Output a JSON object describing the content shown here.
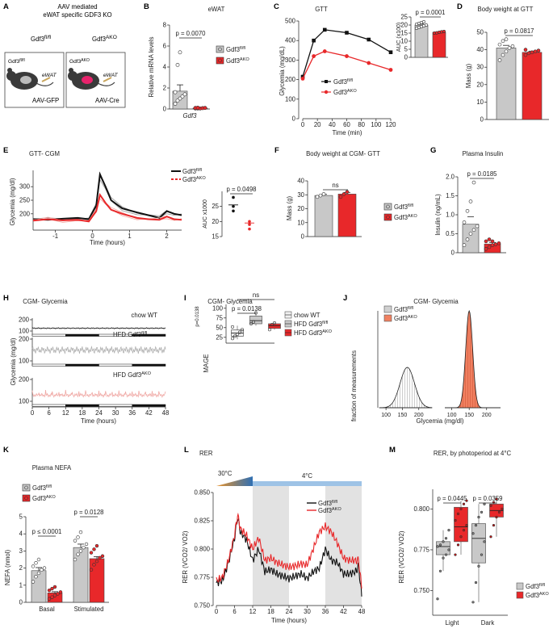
{
  "panel_A": {
    "letter": "A",
    "title_line1": "AAV mediated",
    "title_line2": "eWAT specific GDF3 KO",
    "mouse_left": "Gdf3",
    "mouse_left_sup": "fl/fl",
    "mouse_right": "Gdf3",
    "mouse_right_sup": "AKO",
    "ewat": "eWAT",
    "virus_left": "AAV-GFP",
    "virus_right": "AAV-Cre"
  },
  "colors": {
    "fl": "#c8c8c8",
    "ako": "#e8282a",
    "black": "#111111",
    "red": "#e8282a",
    "light_red": "#f4a6a0",
    "grey": "#9a9a9a",
    "blue": "#9ec3e6",
    "orange": "#e8922a"
  },
  "legend": {
    "fl": "Gdf3",
    "fl_sup": "fl/fl",
    "ako": "Gdf3",
    "ako_sup": "AKO",
    "chow": "chow WT",
    "hfd_fl": "HFD Gdf3",
    "hfd_ako": "HFD Gdf3"
  },
  "chart_data": [
    {
      "panel": "B",
      "type": "bar",
      "title": "eWAT",
      "ylabel": "Relative  mRNA levels",
      "xlabel": "Gdf3",
      "ylim": [
        0,
        8
      ],
      "yticks": [
        0,
        2,
        4,
        6,
        8
      ],
      "pvalue": "p = 0.0070",
      "series": [
        {
          "name": "Gdf3fl/fl",
          "value": 1.7,
          "sem": 0.6,
          "points": [
            0.5,
            0.8,
            1.0,
            1.2,
            1.4,
            1.6,
            4.2,
            5.4
          ]
        },
        {
          "name": "Gdf3AKO",
          "value": 0.08,
          "sem": 0.03,
          "points": [
            0.05,
            0.05,
            0.05,
            0.08,
            0.1,
            0.1,
            0.12
          ]
        }
      ]
    },
    {
      "panel": "C",
      "type": "line",
      "title": "GTT",
      "xlabel": "Time (min)",
      "ylabel": "Glycemia (mg/dL)",
      "x": [
        0,
        15,
        30,
        60,
        90,
        120
      ],
      "xticks": [
        0,
        20,
        40,
        60,
        80,
        100,
        120
      ],
      "ylim": [
        0,
        500
      ],
      "yticks": [
        0,
        100,
        200,
        300,
        400,
        500
      ],
      "series": [
        {
          "name": "Gdf3fl/fl",
          "values": [
            215,
            400,
            455,
            440,
            405,
            340
          ]
        },
        {
          "name": "Gdf3AKO",
          "values": [
            205,
            320,
            345,
            320,
            285,
            250
          ]
        }
      ],
      "inset": {
        "type": "bar",
        "ylabel": "AUC (x100)",
        "ylim": [
          0,
          25
        ],
        "yticks": [
          0,
          5,
          10,
          15,
          20,
          25
        ],
        "pvalue": "p = 0.0001",
        "values": [
          20,
          15.5
        ],
        "sems": [
          0.6,
          0.3
        ],
        "points": [
          [
            18,
            18.5,
            19,
            19.5,
            20,
            20.5,
            21,
            21.5,
            22
          ],
          [
            15,
            15.2,
            15.5,
            15.8,
            16
          ]
        ]
      }
    },
    {
      "panel": "D",
      "type": "bar",
      "title": "Body weight at GTT",
      "ylabel": "Mass (g)",
      "ylim": [
        0,
        50
      ],
      "yticks": [
        0,
        10,
        20,
        30,
        40,
        50
      ],
      "pvalue": "p = 0.0817",
      "series": [
        {
          "name": "Gdf3fl/fl",
          "value": 41,
          "sem": 1.5,
          "points": [
            34,
            37,
            39,
            41,
            42,
            43,
            45,
            46
          ]
        },
        {
          "name": "Gdf3AKO",
          "value": 38.5,
          "sem": 0.7,
          "points": [
            37,
            38,
            38.5,
            39,
            39.5,
            40
          ]
        }
      ]
    },
    {
      "panel": "E",
      "type": "line",
      "title": "GTT- CGM",
      "xlabel": "Time (hours)",
      "ylabel": "Glycemia (mg/dl)",
      "xlim": [
        -1.6,
        2.4
      ],
      "xticks": [
        -1,
        0,
        1,
        2
      ],
      "ylim": [
        140,
        360
      ],
      "yticks": [
        200,
        250,
        300
      ],
      "series": [
        {
          "name": "Gdf3fl/fl",
          "x": [
            -1.6,
            -1.2,
            -0.8,
            -0.4,
            -0.1,
            0.1,
            0.2,
            0.35,
            0.5,
            0.8,
            1.2,
            1.5,
            1.8,
            2.0,
            2.2,
            2.4
          ],
          "values": [
            180,
            178,
            182,
            185,
            180,
            230,
            345,
            300,
            250,
            220,
            205,
            195,
            185,
            210,
            200,
            195
          ]
        },
        {
          "name": "Gdf3AKO",
          "x": [
            -1.6,
            -1.2,
            -0.8,
            -0.4,
            -0.1,
            0.1,
            0.2,
            0.35,
            0.5,
            0.8,
            1.2,
            1.5,
            1.8,
            2.0,
            2.2,
            2.4
          ],
          "values": [
            175,
            180,
            176,
            178,
            172,
            210,
            270,
            240,
            215,
            200,
            185,
            180,
            178,
            190,
            180,
            178
          ]
        }
      ],
      "inset": {
        "type": "scatter",
        "ylabel": "AUC x1000",
        "ylim": [
          15,
          30
        ],
        "yticks": [
          15,
          20,
          25
        ],
        "pvalue": "p = 0.0498",
        "points": [
          [
            28,
            25,
            23.5
          ],
          [
            20,
            19,
            17.5
          ]
        ],
        "means": [
          25.5,
          19.5
        ]
      }
    },
    {
      "panel": "F",
      "type": "bar",
      "title": "Body weight at CGM- GTT",
      "ylabel": "Mass (g)",
      "ylim": [
        0,
        40
      ],
      "yticks": [
        0,
        10,
        20,
        30,
        40
      ],
      "pvalue": "ns",
      "series": [
        {
          "name": "Gdf3fl/fl",
          "value": 29.5,
          "sem": 0.8,
          "points": [
            28.5,
            29.5,
            30.5
          ]
        },
        {
          "name": "Gdf3AKO",
          "value": 30.5,
          "sem": 1.2,
          "points": [
            28.5,
            30.5,
            32
          ]
        }
      ]
    },
    {
      "panel": "G",
      "type": "bar",
      "title": "Plasma Insulin",
      "ylabel": "Insulin (ng/mL)",
      "ylim": [
        0,
        2.0
      ],
      "yticks": [
        0,
        0.5,
        1.0,
        1.5,
        2.0
      ],
      "pvalue": "p = 0.0185",
      "series": [
        {
          "name": "Gdf3fl/fl",
          "value": 0.75,
          "sem": 0.2,
          "points": [
            0.2,
            0.35,
            0.5,
            0.6,
            0.7,
            0.8,
            1.1,
            1.35,
            1.85
          ]
        },
        {
          "name": "Gdf3AKO",
          "value": 0.23,
          "sem": 0.04,
          "points": [
            0.1,
            0.15,
            0.2,
            0.22,
            0.25,
            0.3,
            0.35,
            0.3
          ]
        }
      ]
    },
    {
      "panel": "H",
      "type": "line",
      "title": "CGM- Glycemia",
      "xlabel": "Time (hours)",
      "ylabel": "Glycemia (mg/dl)",
      "xticks": [
        0,
        6,
        12,
        18,
        24,
        30,
        36,
        42,
        48
      ],
      "tracks": [
        {
          "name": "chow WT",
          "ylim": [
            100,
            200
          ],
          "yticks": [
            100,
            200
          ]
        },
        {
          "name": "HFD Gdf3fl/fl",
          "ylim": [
            100,
            200
          ],
          "yticks": [
            100,
            200
          ]
        },
        {
          "name": "HFD Gdf3AKO",
          "ylim": [
            100,
            200
          ],
          "yticks": [
            100,
            200
          ]
        }
      ]
    },
    {
      "panel": "I",
      "type": "box",
      "title": "CGM- Glycemia",
      "ylabel": "MAGE",
      "ylim": [
        10,
        110
      ],
      "yticks": [
        25,
        50,
        75,
        100
      ],
      "side_label": "p=0.0138",
      "comparisons": [
        {
          "label": "p = 0.0138"
        },
        {
          "label": "ns"
        }
      ],
      "groups": [
        {
          "name": "chow WT",
          "q1": 28,
          "median": 36,
          "q3": 44,
          "min": 20,
          "max": 55,
          "points": [
            22,
            28,
            33,
            38,
            45,
            52
          ]
        },
        {
          "name": "HFD Gdf3fl/fl",
          "q1": 60,
          "median": 68,
          "q3": 80,
          "min": 55,
          "max": 92,
          "points": [
            60,
            65,
            88
          ]
        },
        {
          "name": "HFD Gdf3AKO",
          "q1": 48,
          "median": 55,
          "q3": 60,
          "min": 45,
          "max": 63,
          "points": [
            45,
            58,
            62
          ]
        }
      ]
    },
    {
      "panel": "J",
      "type": "area",
      "title": "CGM- Glycemia",
      "xlabel": "Glycemia (mg/dl)",
      "ylabel": "fraction of measurements",
      "xticks": [
        100,
        150,
        200
      ],
      "series": [
        {
          "name": "Gdf3fl/fl",
          "center": 165,
          "spread": 22
        },
        {
          "name": "Gdf3AKO",
          "center": 150,
          "spread": 10
        }
      ]
    },
    {
      "panel": "K",
      "type": "bar",
      "title": "Plasma NEFA",
      "ylabel": "NEFA (nmol)",
      "categories": [
        "Basal",
        "Stimulated"
      ],
      "ylim": [
        0,
        5
      ],
      "yticks": [
        0,
        1,
        2,
        3,
        4,
        5
      ],
      "pvalues": [
        "p ≤ 0.0001",
        "p = 0.0128"
      ],
      "series": [
        {
          "name": "Gdf3fl/fl",
          "values": [
            1.85,
            3.2
          ],
          "sems": [
            0.18,
            0.2
          ],
          "points": [
            [
              1.2,
              1.5,
              1.7,
              1.9,
              2.0,
              2.1,
              2.3,
              2.5
            ],
            [
              2.5,
              2.8,
              3.0,
              3.2,
              3.4,
              3.6,
              3.8,
              4.1
            ]
          ]
        },
        {
          "name": "Gdf3AKO",
          "values": [
            0.55,
            2.55
          ],
          "sems": [
            0.07,
            0.12
          ],
          "points": [
            [
              0.2,
              0.3,
              0.4,
              0.5,
              0.6,
              0.7,
              0.8,
              0.9
            ],
            [
              1.9,
              2.2,
              2.4,
              2.6,
              2.7,
              2.9,
              3.1,
              3.3
            ]
          ]
        }
      ]
    },
    {
      "panel": "L",
      "type": "line",
      "title": "RER",
      "xlabel": "Time (hours)",
      "ylabel": "RER (VCO2/ VO2)",
      "xlim": [
        0,
        48
      ],
      "xticks": [
        0,
        6,
        12,
        18,
        24,
        30,
        36,
        42,
        48
      ],
      "ylim": [
        0.75,
        0.85
      ],
      "yticks": [
        0.75,
        0.775,
        0.8,
        0.825,
        0.85
      ],
      "temp_warm": "30°C",
      "temp_cold": "4°C",
      "series": [
        {
          "name": "Gdf3fl/fl",
          "x": [
            0,
            2,
            4,
            6,
            7,
            8,
            10,
            12,
            14,
            16,
            18,
            20,
            22,
            24,
            26,
            28,
            30,
            32,
            34,
            36,
            38,
            40,
            42,
            44,
            46,
            47,
            48
          ],
          "values": [
            0.77,
            0.772,
            0.788,
            0.81,
            0.828,
            0.815,
            0.808,
            0.79,
            0.8,
            0.78,
            0.782,
            0.778,
            0.776,
            0.774,
            0.776,
            0.778,
            0.774,
            0.78,
            0.783,
            0.8,
            0.79,
            0.788,
            0.778,
            0.778,
            0.78,
            0.785,
            0.758
          ]
        },
        {
          "name": "Gdf3AKO",
          "x": [
            0,
            2,
            4,
            6,
            7,
            8,
            10,
            12,
            14,
            16,
            18,
            20,
            22,
            24,
            26,
            28,
            30,
            32,
            34,
            36,
            38,
            40,
            42,
            44,
            46,
            47,
            48
          ],
          "values": [
            0.772,
            0.775,
            0.79,
            0.812,
            0.83,
            0.818,
            0.812,
            0.8,
            0.81,
            0.79,
            0.792,
            0.788,
            0.786,
            0.784,
            0.785,
            0.787,
            0.786,
            0.8,
            0.815,
            0.82,
            0.815,
            0.805,
            0.792,
            0.79,
            0.79,
            0.79,
            0.765
          ]
        }
      ]
    },
    {
      "panel": "M",
      "type": "box",
      "title": "RER, by photoperiod at 4°C",
      "ylabel": "RER (VCO2/ VO2)",
      "categories": [
        "Light",
        "Dark"
      ],
      "ylim": [
        0.735,
        0.812
      ],
      "yticks": [
        0.75,
        0.775,
        0.8
      ],
      "pvalues": [
        "p = 0.0445",
        "p = 0.0359"
      ],
      "groups": [
        {
          "cat": "Light",
          "name": "Gdf3fl/fl",
          "q1": 0.772,
          "median": 0.777,
          "q3": 0.78,
          "min": 0.762,
          "max": 0.787,
          "points": [
            0.745,
            0.762,
            0.77,
            0.772,
            0.775,
            0.777,
            0.778,
            0.78,
            0.782,
            0.787
          ]
        },
        {
          "cat": "Light",
          "name": "Gdf3AKO",
          "q1": 0.78,
          "median": 0.789,
          "q3": 0.801,
          "min": 0.772,
          "max": 0.805,
          "points": [
            0.772,
            0.778,
            0.783,
            0.787,
            0.79,
            0.793,
            0.797,
            0.8,
            0.803,
            0.805
          ]
        },
        {
          "cat": "Dark",
          "name": "Gdf3fl/fl",
          "q1": 0.767,
          "median": 0.782,
          "q3": 0.791,
          "min": 0.743,
          "max": 0.803,
          "points": [
            0.743,
            0.755,
            0.765,
            0.772,
            0.78,
            0.785,
            0.79,
            0.795,
            0.798,
            0.803
          ]
        },
        {
          "cat": "Dark",
          "name": "Gdf3AKO",
          "q1": 0.795,
          "median": 0.799,
          "q3": 0.803,
          "min": 0.783,
          "max": 0.806,
          "points": [
            0.783,
            0.79,
            0.795,
            0.798,
            0.8,
            0.802,
            0.804,
            0.806
          ]
        }
      ]
    }
  ]
}
